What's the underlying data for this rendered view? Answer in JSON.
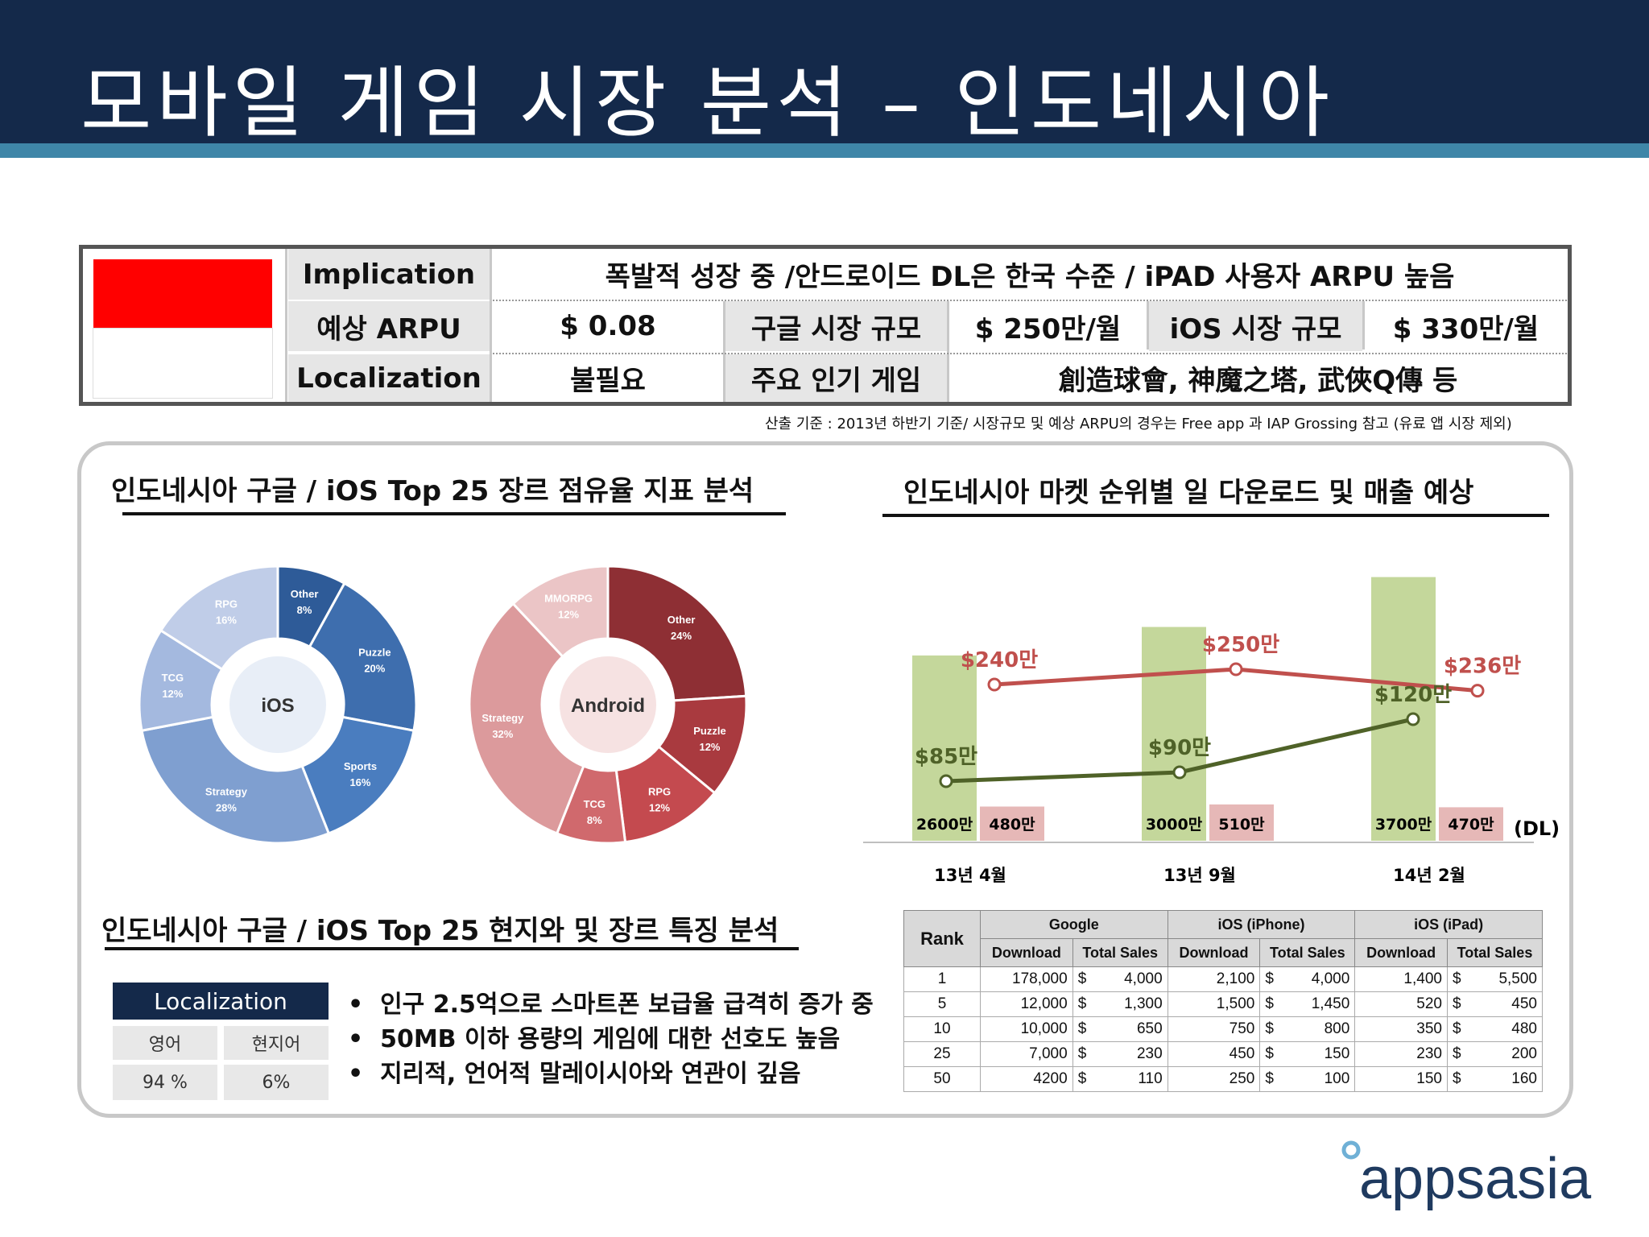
{
  "title": "모바일 게임 시장 분석 – 인도네시아",
  "summary": {
    "implication_label": "Implication",
    "implication_value": "폭발적 성장 중 /안드로이드 DL은 한국 수준  / iPAD 사용자 ARPU 높음",
    "arpu_label": "예상 ARPU",
    "arpu_value": "$ 0.08",
    "google_size_label": "구글 시장 규모",
    "google_size_value": "$ 250만/월",
    "ios_size_label": "iOS 시장 규모",
    "ios_size_value": "$ 330만/월",
    "localization_label": "Localization",
    "localization_value": "불필요",
    "popular_label": "주요 인기 게임",
    "popular_value": "創造球會, 神魔之塔, 武俠Q傳 등",
    "flag_colors": [
      "#ff0000",
      "#ffffff"
    ]
  },
  "footnote": "산출 기준 : 2013년 하반기 기준/ 시장규모 및 예상 ARPU의 경우는 Free app 과 IAP Grossing 참고 (유료 앱 시장 제외)",
  "sections": {
    "genre_title": "인도네시아  구글 / iOS Top 25 장르 점유율 지표 분석",
    "market_title": "인도네시아  마켓 순위별 일 다운로드 및  매출 예상",
    "local_title": "인도네시아  구글 / iOS Top 25 현지와 및 장르 특징 분석"
  },
  "localization_box": {
    "header": "Localization",
    "col1": "영어",
    "col2": "현지어",
    "val1": "94 %",
    "val2": "6%"
  },
  "bullets": [
    "인구 2.5억으로 스마트폰 보급율 급격히 증가 중",
    "50MB 이하 용량의 게임에 대한 선호도 높음",
    "지리적, 언어적 말레이시아와 연관이 깊음"
  ],
  "chart_data": [
    {
      "type": "pie",
      "center_label": "iOS",
      "slices": [
        {
          "label": "Other",
          "value": 8,
          "display": "8%",
          "color": "#2e5b98"
        },
        {
          "label": "Puzzle",
          "value": 20,
          "display": "20%",
          "color": "#3e6eae"
        },
        {
          "label": "Sports",
          "value": 16,
          "display": "16%",
          "color": "#4a7dbf"
        },
        {
          "label": "Strategy",
          "value": 28,
          "display": "28%",
          "color": "#7f9fd0"
        },
        {
          "label": "TCG",
          "value": 12,
          "display": "12%",
          "color": "#a4b9df"
        },
        {
          "label": "RPG",
          "value": 16,
          "display": "16%",
          "color": "#c0cde8"
        }
      ]
    },
    {
      "type": "pie",
      "center_label": "Android",
      "slices": [
        {
          "label": "Other",
          "value": 24,
          "display": "24%",
          "color": "#8e2f34"
        },
        {
          "label": "Puzzle",
          "value": 12,
          "display": "12%",
          "color": "#a93a3f"
        },
        {
          "label": "RPG",
          "value": 12,
          "display": "12%",
          "color": "#c44a4f"
        },
        {
          "label": "TCG",
          "value": 8,
          "display": "8%",
          "color": "#d0696d"
        },
        {
          "label": "Strategy",
          "value": 32,
          "display": "32%",
          "color": "#dc9a9c"
        },
        {
          "label": "MMORPG",
          "value": 12,
          "display": "12%",
          "color": "#ebc5c6"
        }
      ]
    },
    {
      "type": "bar",
      "categories": [
        "13년 4월",
        "13년 9월",
        "14년 2월"
      ],
      "unit_label": "(DL)",
      "series": [
        {
          "values": [
            2600,
            3000,
            3700
          ],
          "labels": [
            "2600만",
            "3000만",
            "3700만"
          ],
          "color": "#c4d79b"
        },
        {
          "values": [
            480,
            510,
            470
          ],
          "labels": [
            "480만",
            "510만",
            "470만"
          ],
          "color": "#e6b8b7"
        }
      ],
      "lines": [
        {
          "values": [
            240,
            250,
            236
          ],
          "labels": [
            "$240만",
            "$250만",
            "$236만"
          ],
          "color": "#c0504d"
        },
        {
          "values": [
            85,
            90,
            120
          ],
          "labels": [
            "$85만",
            "$90만",
            "$120만"
          ],
          "color": "#4f6228"
        }
      ]
    },
    {
      "type": "table",
      "groups": [
        "Google",
        "iOS (iPhone)",
        "iOS (iPad)"
      ],
      "rank_header": "Rank",
      "subheaders": [
        "Download",
        "Total Sales",
        "Download",
        "Total Sales",
        "Download",
        "Total Sales"
      ],
      "rows": [
        {
          "rank": "1",
          "cells": [
            "178,000",
            "4,000",
            "2,100",
            "4,000",
            "1,400",
            "5,500"
          ]
        },
        {
          "rank": "5",
          "cells": [
            "12,000",
            "1,300",
            "1,500",
            "1,450",
            "520",
            "450"
          ]
        },
        {
          "rank": "10",
          "cells": [
            "10,000",
            "650",
            "750",
            "800",
            "350",
            "480"
          ]
        },
        {
          "rank": "25",
          "cells": [
            "7,000",
            "230",
            "450",
            "150",
            "230",
            "200"
          ]
        },
        {
          "rank": "50",
          "cells": [
            "4200",
            "110",
            "250",
            "100",
            "150",
            "160"
          ]
        }
      ],
      "currency": "$"
    }
  ],
  "logo": {
    "text": "appsasia"
  }
}
